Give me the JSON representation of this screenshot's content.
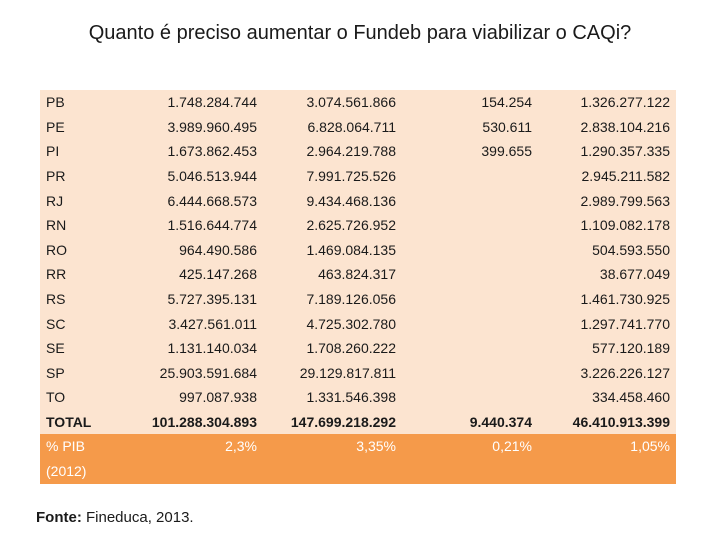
{
  "title": "Quanto é preciso aumentar o Fundeb para viabilizar o CAQi?",
  "rows": [
    {
      "label": "PB",
      "c1": "1.748.284.744",
      "c2": "3.074.561.866",
      "c3": "154.254",
      "c4": "1.326.277.122"
    },
    {
      "label": "PE",
      "c1": "3.989.960.495",
      "c2": "6.828.064.711",
      "c3": "530.611",
      "c4": "2.838.104.216"
    },
    {
      "label": "PI",
      "c1": "1.673.862.453",
      "c2": "2.964.219.788",
      "c3": "399.655",
      "c4": "1.290.357.335"
    },
    {
      "label": "PR",
      "c1": "5.046.513.944",
      "c2": "7.991.725.526",
      "c3": "",
      "c4": "2.945.211.582"
    },
    {
      "label": "RJ",
      "c1": "6.444.668.573",
      "c2": "9.434.468.136",
      "c3": "",
      "c4": "2.989.799.563"
    },
    {
      "label": "RN",
      "c1": "1.516.644.774",
      "c2": "2.625.726.952",
      "c3": "",
      "c4": "1.109.082.178"
    },
    {
      "label": "RO",
      "c1": "964.490.586",
      "c2": "1.469.084.135",
      "c3": "",
      "c4": "504.593.550"
    },
    {
      "label": "RR",
      "c1": "425.147.268",
      "c2": "463.824.317",
      "c3": "",
      "c4": "38.677.049"
    },
    {
      "label": "RS",
      "c1": "5.727.395.131",
      "c2": "7.189.126.056",
      "c3": "",
      "c4": "1.461.730.925"
    },
    {
      "label": "SC",
      "c1": "3.427.561.011",
      "c2": "4.725.302.780",
      "c3": "",
      "c4": "1.297.741.770"
    },
    {
      "label": "SE",
      "c1": "1.131.140.034",
      "c2": "1.708.260.222",
      "c3": "",
      "c4": "577.120.189"
    },
    {
      "label": "SP",
      "c1": "25.903.591.684",
      "c2": "29.129.817.811",
      "c3": "",
      "c4": "3.226.226.127"
    },
    {
      "label": "TO",
      "c1": "997.087.938",
      "c2": "1.331.546.398",
      "c3": "",
      "c4": "334.458.460"
    }
  ],
  "total": {
    "label": "TOTAL",
    "c1": "101.288.304.893",
    "c2": "147.699.218.292",
    "c3": "9.440.374",
    "c4": "46.410.913.399"
  },
  "pib": {
    "label_line1": "% PIB",
    "label_line2": "(2012)",
    "c1": "2,3%",
    "c2": "3,35%",
    "c3": "0,21%",
    "c4": "1,05%"
  },
  "source": {
    "label": "Fonte:",
    "text": " Fineduca, 2013."
  },
  "colors": {
    "row_bg": "#fce4d0",
    "pib_bg": "#f59a4a",
    "pib_text": "#ffffff"
  }
}
